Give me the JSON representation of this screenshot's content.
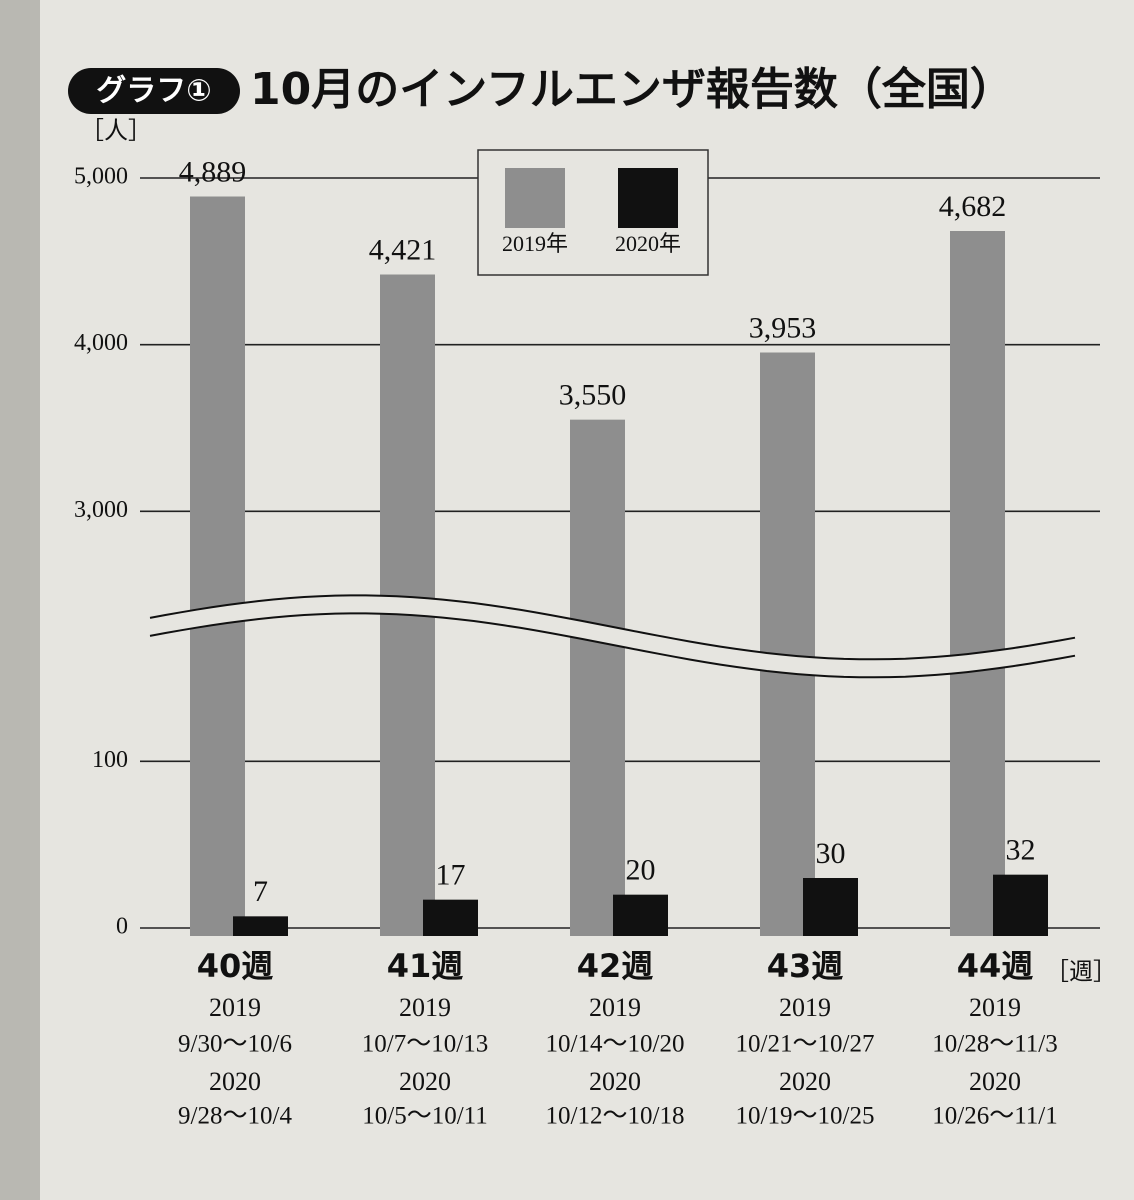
{
  "chart_data": {
    "type": "bar",
    "badge": "グラフ①",
    "title": "10月のインフルエンザ報告数（全国）",
    "y_unit": "［人］",
    "x_unit": "［週］",
    "categories": [
      "40週",
      "41週",
      "42週",
      "43週",
      "44週"
    ],
    "year_labels": [
      "2019",
      "2020"
    ],
    "periods_2019": [
      "9/30〜10/6",
      "10/7〜10/13",
      "10/14〜10/20",
      "10/21〜10/27",
      "10/28〜11/3"
    ],
    "periods_2020": [
      "9/28〜10/4",
      "10/5〜10/11",
      "10/12〜10/18",
      "10/19〜10/25",
      "10/26〜11/1"
    ],
    "series": [
      {
        "name": "2019年",
        "color": "#8e8e8e",
        "values": [
          4889,
          4421,
          3550,
          3953,
          4682
        ],
        "value_labels": [
          "4,889",
          "4,421",
          "3,550",
          "3,953",
          "4,682"
        ]
      },
      {
        "name": "2020年",
        "color": "#111111",
        "values": [
          7,
          17,
          20,
          30,
          32
        ]
      }
    ],
    "ylim": [
      0,
      5000
    ],
    "yticks": [
      0,
      100,
      {
        "value": 3000,
        "label": "3,000"
      },
      {
        "value": 4000,
        "label": "4,000"
      },
      {
        "value": 5000,
        "label": "5,000"
      }
    ],
    "axis_break": true,
    "grid": true
  }
}
